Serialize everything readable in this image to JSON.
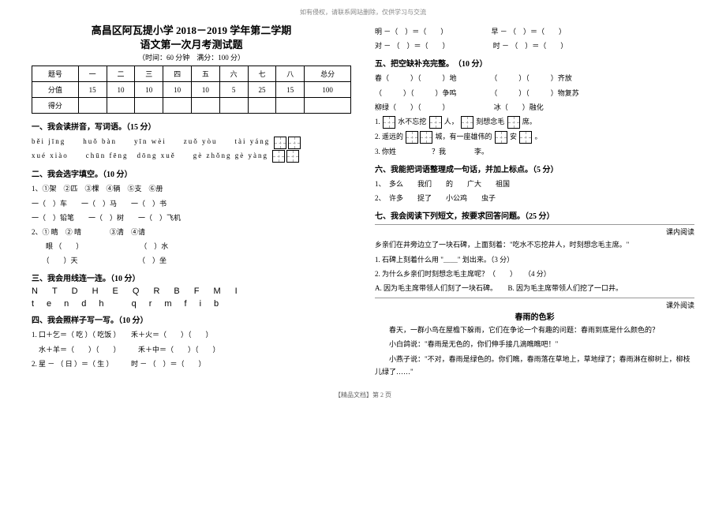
{
  "watermark": "如有侵权，请联系网站删除，仅供学习与交流",
  "header": {
    "title_line1": "高昌区阿瓦提小学 2018－2019 学年第二学期",
    "title_line2": "语文第一次月考测试题",
    "subtitle": "（时间：60 分钟　满分：100 分）"
  },
  "score_table": {
    "row1": [
      "题号",
      "一",
      "二",
      "三",
      "四",
      "五",
      "六",
      "七",
      "八",
      "总分"
    ],
    "row2": [
      "分值",
      "15",
      "10",
      "10",
      "10",
      "10",
      "5",
      "25",
      "15",
      "100"
    ],
    "row3": [
      "得分",
      "",
      "",
      "",
      "",
      "",
      "",
      "",
      "",
      ""
    ]
  },
  "sec1": {
    "h": "一、我会读拼音，写词语。（15 分）",
    "p1": "běi  jīng　　huǒ  bàn　　yīn  wèi　　zuǒ  yòu　　tài  yáng",
    "p2": "xué  xiào　　chūn  fēng　dōng  xuě　　gè  zhǒng  gè  yàng"
  },
  "sec2": {
    "h": "二、我会选字填空。（10 分）",
    "l1": "1、①架　②匹　③棵　④辆　⑤支　⑥册",
    "l2": "一（　）车　　一（　）马　　一（　）书",
    "l3": "一（　）铅笔　　一（　）树　　一（　）飞机",
    "l4": "2、① 睛　② 晴　　　　③清　④请",
    "l5": "　　眼 （　　）　　　　　　　　　（　）水",
    "l6": "　　（　　）天　　　　　　　　　（　）坐"
  },
  "sec3": {
    "h": "三、我会用线连一连。（10 分）",
    "upper": "NTDHEQRBFMI",
    "lower": "tendh qrmfib"
  },
  "sec4": {
    "h": "四、我会照样子写一写。（10 分）",
    "l1": "1. 口＋乞＝（ 吃 ）（ 吃饭 ）　　禾＋火＝（　　）（　　）",
    "l2": "　水＋羊＝（　　）（　　）　　　禾＋中＝（　　）（　　）",
    "l3": "2. 星 － （ 日 ）＝（ 生 ）　　　时 － （　）＝（　　）"
  },
  "right_top": {
    "l1_a": "明 －（　）＝（　　）",
    "l1_b": "早 － （　）＝（　　）",
    "l2_a": "对 － （　）＝（　　）",
    "l2_b": "时 － （　）＝（　　）"
  },
  "sec5": {
    "h": "五、把空缺补充完整。　（10 分）",
    "l1_a": "春（　　　）（　　　）地",
    "l1_b": "（　　　）（　　　）齐放",
    "l2_a": "（　　　）（　　　）争鸣",
    "l2_b": "（　　　）（　　　）物复苏",
    "l3_a": "柳绿（　　）（　　　）",
    "l3_b": "冰（　　）融化",
    "l4_pre": "1.",
    "l4_mid1": "水不忘挖",
    "l4_mid2": "人，",
    "l4_mid3": "刻想念毛",
    "l4_mid4": "席。",
    "l5_pre": "2. 遥远的",
    "l5_mid1": "城，有一座雄伟的",
    "l5_mid2": "安",
    "l5_end": "。",
    "l6": "3. 你姓　　　　　？我　　　　李。"
  },
  "sec6": {
    "h": "六、我能把词语整理成一句话，并加上标点。（5 分）",
    "l1": "1、　多么　　我们　　的　　广大　　祖国",
    "l2": "2、　许多　　捉了　　小公鸡　　虫子"
  },
  "sec7": {
    "h": "七、我会阅读下列短文，按要求回答问题。（25 分）",
    "in_label": "课内阅读",
    "in_l1": "乡亲们在井旁边立了一块石碑，上面刻着：\"吃水不忘挖井人，时刻想念毛主席。\"",
    "in_l2": "1. 石碑上刻着什么用 \"＿＿\" 划出来。（3 分）",
    "in_l3": "2. 为什么乡亲们时刻想念毛主席呢？（　　）　　（4 分）",
    "in_l4": "A. 因为毛主席带领人们刻了一块石碑。　　B. 因为毛主席带领人们挖了一口井。",
    "out_label": "课外阅读",
    "out_title": "春雨的色彩",
    "out_p1": "　　春天，一群小鸟在屋檐下躲雨，它们在争论一个有趣的问题：春雨到底是什么颜色的？",
    "out_p2": "　　小白鸽说：\"春雨是无色的，你们伸手接几滴瞧瞧吧！\"",
    "out_p3": "　　小燕子说：\"不对，春雨是绿色的。你们瞧，春雨落在草地上，草地绿了；春雨淋在柳树上，柳枝儿绿了……\""
  },
  "footer": "【精品文档】第 2 页"
}
